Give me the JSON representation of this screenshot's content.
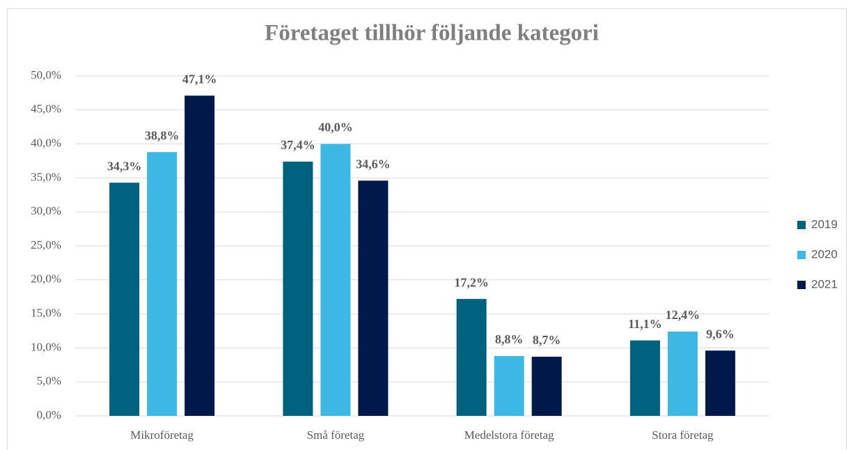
{
  "chart_data": {
    "type": "bar",
    "title": "Företaget tillhör följande kategori",
    "categories": [
      "Mikroföretag",
      "Små företag",
      "Medelstora företag",
      "Stora företag"
    ],
    "series": [
      {
        "name": "2019",
        "color": "#00627f",
        "values": [
          34.3,
          37.4,
          17.2,
          11.1
        ],
        "value_labels": [
          "34,3%",
          "37,4%",
          "17,2%",
          "11,1%"
        ]
      },
      {
        "name": "2020",
        "color": "#3db7e4",
        "values": [
          38.8,
          40.0,
          8.8,
          12.4
        ],
        "value_labels": [
          "38,8%",
          "40,0%",
          "8,8%",
          "12,4%"
        ]
      },
      {
        "name": "2021",
        "color": "#00194b",
        "values": [
          47.1,
          34.6,
          8.7,
          9.6
        ],
        "value_labels": [
          "47,1%",
          "34,6%",
          "8,7%",
          "9,6%"
        ]
      }
    ],
    "ylim": [
      0,
      50
    ],
    "yticks": [
      {
        "value": 0,
        "label": "0,0%"
      },
      {
        "value": 5,
        "label": "5,0%"
      },
      {
        "value": 10,
        "label": "10,0%"
      },
      {
        "value": 15,
        "label": "15,0%"
      },
      {
        "value": 20,
        "label": "20,0%"
      },
      {
        "value": 25,
        "label": "25,0%"
      },
      {
        "value": 30,
        "label": "30,0%"
      },
      {
        "value": 35,
        "label": "35,0%"
      },
      {
        "value": 40,
        "label": "40,0%"
      },
      {
        "value": 45,
        "label": "45,0%"
      },
      {
        "value": 50,
        "label": "50,0%"
      }
    ],
    "grid": true,
    "legend": "right"
  }
}
